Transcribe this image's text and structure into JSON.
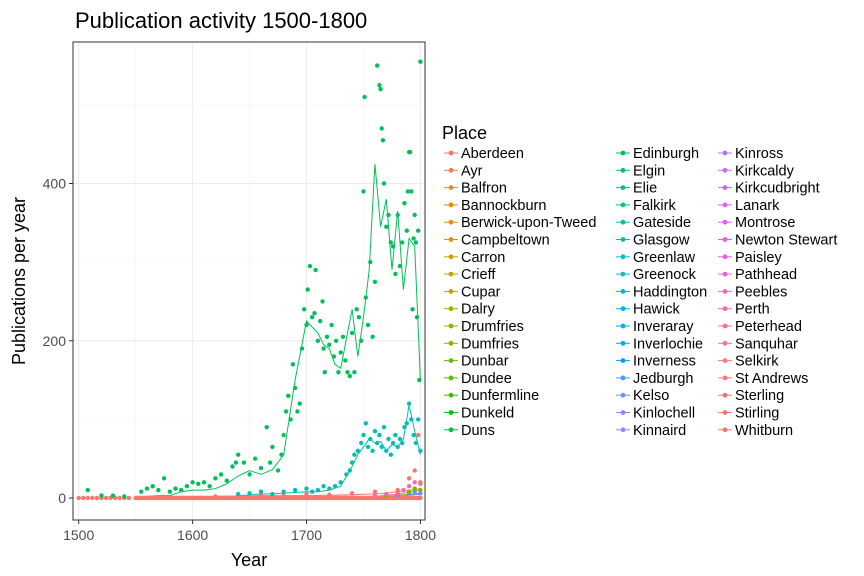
{
  "chart_data": {
    "type": "scatter",
    "title": "Publication activity 1500-1800",
    "xlabel": "Year",
    "ylabel": "Publications per year",
    "xlim": [
      1495,
      1804
    ],
    "ylim": [
      -28,
      580
    ],
    "x_ticks": [
      1500,
      1600,
      1700,
      1800
    ],
    "y_ticks": [
      0,
      200,
      400
    ],
    "grid": true,
    "legend_title": "Place",
    "legend_position": "right",
    "places": [
      {
        "name": "Aberdeen",
        "color": "#F8766D"
      },
      {
        "name": "Ayr",
        "color": "#F47E56"
      },
      {
        "name": "Balfron",
        "color": "#EF8530"
      },
      {
        "name": "Bannockburn",
        "color": "#E88B00"
      },
      {
        "name": "Berwick-upon-Tweed",
        "color": "#E09200"
      },
      {
        "name": "Campbeltown",
        "color": "#D69800"
      },
      {
        "name": "Carron",
        "color": "#CC9E00"
      },
      {
        "name": "Crieff",
        "color": "#C0A300"
      },
      {
        "name": "Cupar",
        "color": "#B3A800"
      },
      {
        "name": "Dalry",
        "color": "#A5AC00"
      },
      {
        "name": "Drumfries",
        "color": "#96B000"
      },
      {
        "name": "Dumfries",
        "color": "#85B300"
      },
      {
        "name": "Dunbar",
        "color": "#72B600"
      },
      {
        "name": "Dundee",
        "color": "#5CB900"
      },
      {
        "name": "Dunfermline",
        "color": "#3FBB00"
      },
      {
        "name": "Dunkeld",
        "color": "#00BD1C"
      },
      {
        "name": "Duns",
        "color": "#00BF3E"
      },
      {
        "name": "Edinburgh",
        "color": "#00C057"
      },
      {
        "name": "Elgin",
        "color": "#00C16C"
      },
      {
        "name": "Elie",
        "color": "#00C17F"
      },
      {
        "name": "Falkirk",
        "color": "#00C191"
      },
      {
        "name": "Gateside",
        "color": "#00C0A2"
      },
      {
        "name": "Glasgow",
        "color": "#00BFB2"
      },
      {
        "name": "Greenlaw",
        "color": "#00BDC2"
      },
      {
        "name": "Greenock",
        "color": "#00BAD0"
      },
      {
        "name": "Haddington",
        "color": "#00B7DE"
      },
      {
        "name": "Hawick",
        "color": "#00B2EA"
      },
      {
        "name": "Inveraray",
        "color": "#00ADF6"
      },
      {
        "name": "Inverlochie",
        "color": "#00A7FF"
      },
      {
        "name": "Inverness",
        "color": "#00A0FF"
      },
      {
        "name": "Jedburgh",
        "color": "#4599FF"
      },
      {
        "name": "Kelso",
        "color": "#6D91FF"
      },
      {
        "name": "Kinlochell",
        "color": "#8A88FF"
      },
      {
        "name": "Kinnaird",
        "color": "#A17FFF"
      },
      {
        "name": "Kinross",
        "color": "#B476FF"
      },
      {
        "name": "Kirkcaldy",
        "color": "#C46DFF"
      },
      {
        "name": "Kirkcudbright",
        "color": "#D165FF"
      },
      {
        "name": "Lanark",
        "color": "#DC5FFF"
      },
      {
        "name": "Montrose",
        "color": "#E65BF7"
      },
      {
        "name": "Newton Stewart",
        "color": "#ED59EC"
      },
      {
        "name": "Paisley",
        "color": "#F35ADE"
      },
      {
        "name": "Pathhead",
        "color": "#F75DCF"
      },
      {
        "name": "Peebles",
        "color": "#FA62BE"
      },
      {
        "name": "Perth",
        "color": "#FC67AC"
      },
      {
        "name": "Peterhead",
        "color": "#FC6D9A"
      },
      {
        "name": "Sanquhar",
        "color": "#FC7289"
      },
      {
        "name": "Selkirk",
        "color": "#FB767D"
      },
      {
        "name": "St Andrews",
        "color": "#F97577"
      },
      {
        "name": "Sterling",
        "color": "#F87470"
      },
      {
        "name": "Stirling",
        "color": "#F8766D"
      },
      {
        "name": "Whitburn",
        "color": "#F8766D"
      }
    ],
    "series": [
      {
        "name": "Edinburgh",
        "color": "#00C057",
        "line": [
          [
            1550,
            1
          ],
          [
            1560,
            2
          ],
          [
            1570,
            3
          ],
          [
            1580,
            3
          ],
          [
            1590,
            8
          ],
          [
            1600,
            10
          ],
          [
            1610,
            10
          ],
          [
            1620,
            12
          ],
          [
            1630,
            18
          ],
          [
            1640,
            28
          ],
          [
            1650,
            35
          ],
          [
            1660,
            30
          ],
          [
            1670,
            36
          ],
          [
            1680,
            55
          ],
          [
            1690,
            150
          ],
          [
            1700,
            225
          ],
          [
            1710,
            210
          ],
          [
            1715,
            195
          ],
          [
            1720,
            190
          ],
          [
            1725,
            170
          ],
          [
            1730,
            165
          ],
          [
            1740,
            240
          ],
          [
            1745,
            180
          ],
          [
            1750,
            230
          ],
          [
            1755,
            290
          ],
          [
            1760,
            425
          ],
          [
            1765,
            345
          ],
          [
            1770,
            380
          ],
          [
            1775,
            290
          ],
          [
            1780,
            365
          ],
          [
            1785,
            265
          ],
          [
            1790,
            330
          ],
          [
            1795,
            320
          ],
          [
            1800,
            150
          ]
        ],
        "points": [
          [
            1508,
            10
          ],
          [
            1520,
            3
          ],
          [
            1530,
            3
          ],
          [
            1540,
            2
          ],
          [
            1555,
            8
          ],
          [
            1560,
            12
          ],
          [
            1565,
            15
          ],
          [
            1570,
            10
          ],
          [
            1575,
            25
          ],
          [
            1580,
            8
          ],
          [
            1585,
            12
          ],
          [
            1590,
            10
          ],
          [
            1595,
            15
          ],
          [
            1600,
            20
          ],
          [
            1605,
            18
          ],
          [
            1610,
            20
          ],
          [
            1615,
            15
          ],
          [
            1620,
            25
          ],
          [
            1625,
            30
          ],
          [
            1630,
            22
          ],
          [
            1635,
            40
          ],
          [
            1638,
            45
          ],
          [
            1640,
            55
          ],
          [
            1645,
            45
          ],
          [
            1650,
            30
          ],
          [
            1655,
            50
          ],
          [
            1660,
            38
          ],
          [
            1665,
            90
          ],
          [
            1668,
            45
          ],
          [
            1670,
            65
          ],
          [
            1675,
            35
          ],
          [
            1678,
            55
          ],
          [
            1680,
            80
          ],
          [
            1682,
            110
          ],
          [
            1684,
            130
          ],
          [
            1686,
            100
          ],
          [
            1688,
            170
          ],
          [
            1690,
            140
          ],
          [
            1692,
            110
          ],
          [
            1694,
            120
          ],
          [
            1696,
            190
          ],
          [
            1698,
            240
          ],
          [
            1700,
            220
          ],
          [
            1701,
            265
          ],
          [
            1703,
            295
          ],
          [
            1705,
            230
          ],
          [
            1707,
            235
          ],
          [
            1708,
            290
          ],
          [
            1710,
            200
          ],
          [
            1712,
            225
          ],
          [
            1714,
            250
          ],
          [
            1715,
            190
          ],
          [
            1716,
            160
          ],
          [
            1718,
            205
          ],
          [
            1720,
            195
          ],
          [
            1722,
            220
          ],
          [
            1724,
            180
          ],
          [
            1726,
            200
          ],
          [
            1728,
            160
          ],
          [
            1730,
            185
          ],
          [
            1732,
            205
          ],
          [
            1734,
            175
          ],
          [
            1736,
            160
          ],
          [
            1738,
            155
          ],
          [
            1740,
            210
          ],
          [
            1742,
            160
          ],
          [
            1744,
            240
          ],
          [
            1746,
            230
          ],
          [
            1748,
            200
          ],
          [
            1750,
            390
          ],
          [
            1751,
            510
          ],
          [
            1752,
            255
          ],
          [
            1754,
            220
          ],
          [
            1756,
            300
          ],
          [
            1758,
            205
          ],
          [
            1760,
            275
          ],
          [
            1762,
            550
          ],
          [
            1764,
            525
          ],
          [
            1765,
            520
          ],
          [
            1766,
            470
          ],
          [
            1767,
            455
          ],
          [
            1768,
            400
          ],
          [
            1770,
            345
          ],
          [
            1772,
            360
          ],
          [
            1774,
            325
          ],
          [
            1776,
            320
          ],
          [
            1778,
            285
          ],
          [
            1780,
            360
          ],
          [
            1782,
            295
          ],
          [
            1784,
            325
          ],
          [
            1786,
            375
          ],
          [
            1788,
            340
          ],
          [
            1789,
            390
          ],
          [
            1790,
            440
          ],
          [
            1791,
            440
          ],
          [
            1792,
            390
          ],
          [
            1793,
            240
          ],
          [
            1794,
            330
          ],
          [
            1795,
            360
          ],
          [
            1796,
            325
          ],
          [
            1797,
            230
          ],
          [
            1798,
            340
          ],
          [
            1799,
            150
          ],
          [
            1800,
            555
          ]
        ]
      },
      {
        "name": "Glasgow",
        "color": "#00BFB2",
        "line": [
          [
            1640,
            3
          ],
          [
            1660,
            5
          ],
          [
            1680,
            6
          ],
          [
            1700,
            8
          ],
          [
            1710,
            8
          ],
          [
            1720,
            10
          ],
          [
            1730,
            15
          ],
          [
            1740,
            40
          ],
          [
            1745,
            55
          ],
          [
            1750,
            65
          ],
          [
            1755,
            75
          ],
          [
            1760,
            70
          ],
          [
            1765,
            72
          ],
          [
            1770,
            60
          ],
          [
            1775,
            68
          ],
          [
            1780,
            65
          ],
          [
            1785,
            75
          ],
          [
            1790,
            118
          ],
          [
            1795,
            85
          ],
          [
            1800,
            55
          ]
        ],
        "points": [
          [
            1640,
            5
          ],
          [
            1650,
            6
          ],
          [
            1660,
            8
          ],
          [
            1670,
            5
          ],
          [
            1680,
            8
          ],
          [
            1690,
            10
          ],
          [
            1700,
            12
          ],
          [
            1705,
            8
          ],
          [
            1710,
            10
          ],
          [
            1715,
            15
          ],
          [
            1720,
            12
          ],
          [
            1725,
            15
          ],
          [
            1730,
            20
          ],
          [
            1735,
            30
          ],
          [
            1738,
            35
          ],
          [
            1740,
            45
          ],
          [
            1742,
            55
          ],
          [
            1745,
            60
          ],
          [
            1748,
            70
          ],
          [
            1750,
            80
          ],
          [
            1752,
            95
          ],
          [
            1754,
            65
          ],
          [
            1756,
            75
          ],
          [
            1758,
            60
          ],
          [
            1760,
            85
          ],
          [
            1762,
            70
          ],
          [
            1764,
            80
          ],
          [
            1766,
            65
          ],
          [
            1768,
            90
          ],
          [
            1770,
            60
          ],
          [
            1772,
            75
          ],
          [
            1774,
            55
          ],
          [
            1776,
            70
          ],
          [
            1778,
            80
          ],
          [
            1780,
            65
          ],
          [
            1782,
            75
          ],
          [
            1784,
            70
          ],
          [
            1786,
            90
          ],
          [
            1788,
            95
          ],
          [
            1790,
            120
          ],
          [
            1792,
            100
          ],
          [
            1794,
            80
          ],
          [
            1796,
            70
          ],
          [
            1798,
            100
          ],
          [
            1800,
            60
          ]
        ]
      },
      {
        "name": "Aberdeen",
        "color": "#F8766D",
        "line": [
          [
            1620,
            2
          ],
          [
            1660,
            3
          ],
          [
            1700,
            3
          ],
          [
            1740,
            4
          ],
          [
            1770,
            6
          ],
          [
            1800,
            12
          ]
        ],
        "points": [
          [
            1620,
            2
          ],
          [
            1640,
            3
          ],
          [
            1660,
            4
          ],
          [
            1680,
            3
          ],
          [
            1700,
            5
          ],
          [
            1720,
            4
          ],
          [
            1740,
            6
          ],
          [
            1760,
            8
          ],
          [
            1780,
            10
          ],
          [
            1790,
            25
          ],
          [
            1795,
            35
          ],
          [
            1798,
            80
          ],
          [
            1800,
            20
          ]
        ]
      },
      {
        "name": "Perth",
        "color": "#FC67AC",
        "line": [
          [
            1760,
            2
          ],
          [
            1780,
            5
          ],
          [
            1800,
            10
          ]
        ],
        "points": [
          [
            1760,
            3
          ],
          [
            1770,
            5
          ],
          [
            1780,
            6
          ],
          [
            1785,
            10
          ],
          [
            1790,
            15
          ],
          [
            1795,
            20
          ],
          [
            1800,
            18
          ]
        ]
      },
      {
        "name": "Dumfries",
        "color": "#85B300",
        "line": [
          [
            1770,
            2
          ],
          [
            1800,
            6
          ]
        ],
        "points": [
          [
            1770,
            3
          ],
          [
            1780,
            5
          ],
          [
            1790,
            8
          ],
          [
            1795,
            12
          ],
          [
            1800,
            10
          ]
        ]
      },
      {
        "name": "Kelso",
        "color": "#6D91FF",
        "line": [
          [
            1780,
            2
          ],
          [
            1800,
            5
          ]
        ],
        "points": [
          [
            1780,
            3
          ],
          [
            1790,
            6
          ],
          [
            1795,
            8
          ],
          [
            1800,
            6
          ]
        ]
      }
    ]
  }
}
